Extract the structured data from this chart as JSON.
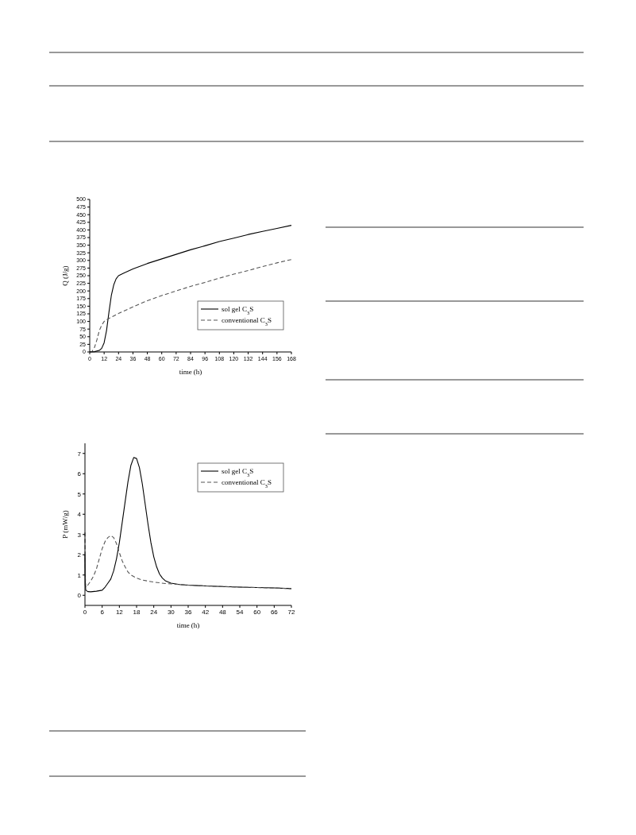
{
  "chart_data": [
    {
      "type": "line",
      "xlabel": "time (h)",
      "ylabel": "Q (J/g)",
      "xlim": [
        0,
        168
      ],
      "ylim": [
        0,
        500
      ],
      "xticks": [
        0,
        12,
        24,
        36,
        48,
        60,
        72,
        84,
        96,
        108,
        120,
        132,
        144,
        156,
        168
      ],
      "yticks": [
        0,
        25,
        50,
        75,
        100,
        125,
        150,
        175,
        200,
        225,
        250,
        275,
        300,
        325,
        350,
        375,
        400,
        425,
        450,
        475,
        500
      ],
      "legend": "right",
      "grid": false,
      "series": [
        {
          "name": "sol gel C$_{3}$S",
          "color": "#000000",
          "line_style": "solid",
          "x": [
            0,
            4,
            8,
            10,
            12,
            14,
            16,
            18,
            20,
            22,
            24,
            28,
            36,
            48,
            60,
            72,
            84,
            96,
            108,
            120,
            132,
            144,
            156,
            168
          ],
          "values": [
            0,
            1,
            5,
            12,
            30,
            70,
            130,
            185,
            220,
            240,
            250,
            258,
            272,
            290,
            305,
            320,
            335,
            348,
            362,
            373,
            385,
            395,
            405,
            415
          ]
        },
        {
          "name": "conventional C$_{3}$S",
          "color": "#555555",
          "line_style": "dashed",
          "x": [
            0,
            2,
            4,
            6,
            8,
            10,
            12,
            16,
            20,
            24,
            30,
            36,
            48,
            60,
            72,
            84,
            96,
            108,
            120,
            132,
            144,
            156,
            168
          ],
          "values": [
            0,
            2,
            15,
            40,
            70,
            88,
            100,
            110,
            118,
            126,
            137,
            148,
            168,
            185,
            200,
            215,
            228,
            242,
            255,
            267,
            280,
            292,
            303
          ]
        }
      ]
    },
    {
      "type": "line",
      "xlabel": "time (h)",
      "ylabel": "P (mW/g)",
      "xlim": [
        0,
        72
      ],
      "ylim": [
        -0.5,
        7.5
      ],
      "xticks": [
        0,
        6,
        12,
        18,
        24,
        30,
        36,
        42,
        48,
        54,
        60,
        66,
        72
      ],
      "yticks": [
        0,
        1,
        2,
        3,
        4,
        5,
        6,
        7
      ],
      "legend": "top right",
      "grid": false,
      "series": [
        {
          "name": "sol gel C$_{3}$S",
          "color": "#000000",
          "line_style": "solid",
          "x": [
            0,
            0.1,
            0.3,
            1,
            2,
            4,
            6,
            7,
            8,
            9,
            10,
            11,
            12,
            13,
            14,
            15,
            16,
            17,
            18,
            19,
            20,
            21,
            22,
            23,
            24,
            25,
            26,
            27,
            28,
            30,
            33,
            36,
            42,
            48,
            54,
            60,
            66,
            72
          ],
          "values": [
            2.0,
            0.5,
            0.25,
            0.18,
            0.17,
            0.2,
            0.25,
            0.4,
            0.6,
            0.8,
            1.2,
            1.8,
            2.6,
            3.6,
            4.6,
            5.6,
            6.4,
            6.8,
            6.75,
            6.3,
            5.5,
            4.5,
            3.5,
            2.6,
            1.9,
            1.4,
            1.05,
            0.85,
            0.72,
            0.6,
            0.53,
            0.5,
            0.46,
            0.43,
            0.4,
            0.38,
            0.36,
            0.33
          ]
        },
        {
          "name": "conventional C$_{3}$S",
          "color": "#555555",
          "line_style": "dashed",
          "x": [
            0,
            0.1,
            0.3,
            1,
            2,
            3,
            4,
            5,
            6,
            7,
            8,
            9,
            10,
            11,
            12,
            13,
            14,
            15,
            16,
            18,
            20,
            24,
            28,
            32,
            36,
            42,
            48,
            54,
            60,
            66,
            72
          ],
          "values": [
            3.1,
            1.0,
            0.4,
            0.5,
            0.7,
            0.95,
            1.3,
            1.8,
            2.3,
            2.65,
            2.85,
            2.95,
            2.85,
            2.55,
            2.1,
            1.7,
            1.4,
            1.15,
            1.0,
            0.85,
            0.75,
            0.65,
            0.58,
            0.54,
            0.5,
            0.46,
            0.43,
            0.4,
            0.38,
            0.36,
            0.33
          ]
        }
      ]
    }
  ]
}
